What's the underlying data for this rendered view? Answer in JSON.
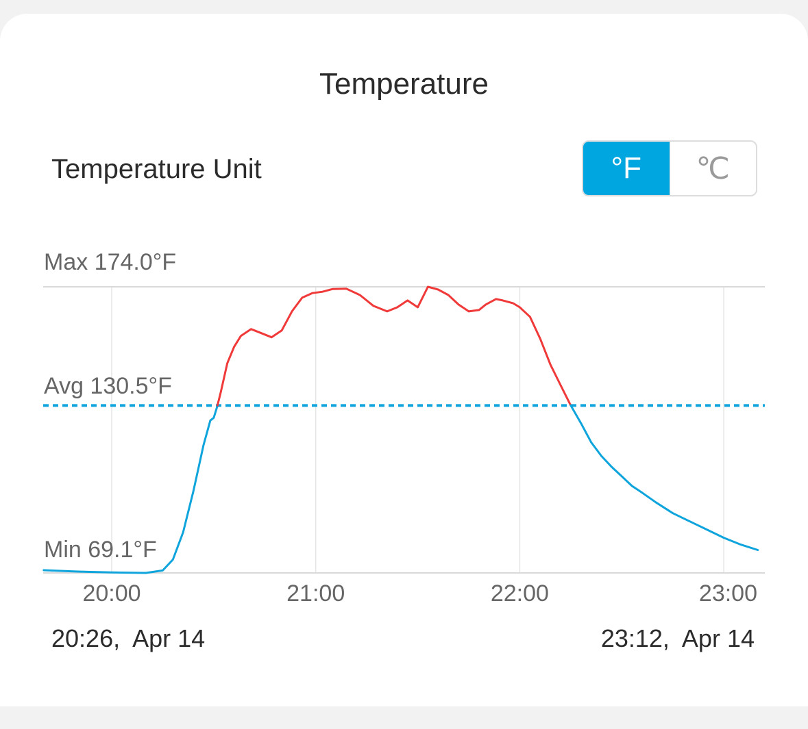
{
  "header": {
    "title": "Temperature"
  },
  "unit_setting": {
    "label": "Temperature Unit",
    "options": [
      "°F",
      "℃"
    ],
    "selected": "°F"
  },
  "time_range": {
    "start": "20:26,  Apr 14",
    "end": "23:12,  Apr 14"
  },
  "colors": {
    "accent": "#00a6e0",
    "above_avg": "#f03a3a",
    "below_avg": "#0fa5dc",
    "grid": "#e5e5e5"
  },
  "chart_data": {
    "type": "line",
    "title": "",
    "xlabel": "",
    "ylabel": "",
    "x_ticks": [
      "20:00",
      "21:00",
      "22:00",
      "23:00"
    ],
    "xlim": [
      "19:40",
      "23:12"
    ],
    "ylim": [
      69.1,
      174.0
    ],
    "max_label": "Max 174.0°F",
    "avg_label": "Avg 130.5°F",
    "min_label": "Min 69.1°F",
    "max": 174.0,
    "avg": 130.5,
    "min": 69.1,
    "color_rule": "red above average, blue below average; dotted blue average line",
    "series": [
      {
        "x": [
          "19:40",
          "19:50",
          "20:00",
          "20:10",
          "20:15",
          "20:18",
          "20:21",
          "20:24",
          "20:27",
          "20:29",
          "20:30",
          "20:31",
          "20:32",
          "20:34",
          "20:36",
          "20:38",
          "20:41",
          "20:44",
          "20:47",
          "20:50",
          "20:53",
          "20:56",
          "20:59",
          "21:02",
          "21:05",
          "21:09",
          "21:13",
          "21:17",
          "21:21",
          "21:24",
          "21:27",
          "21:30",
          "21:33",
          "21:36",
          "21:39",
          "21:42",
          "21:45",
          "21:48",
          "21:50",
          "21:53",
          "21:55",
          "21:58",
          "22:00",
          "22:03",
          "22:06",
          "22:09",
          "22:12",
          "22:15",
          "22:18",
          "22:21",
          "22:24",
          "22:27",
          "22:30",
          "22:33",
          "22:36",
          "22:40",
          "22:45",
          "22:50",
          "22:55",
          "23:00",
          "23:05",
          "23:10"
        ],
        "values": [
          70.1,
          69.6,
          69.3,
          69.1,
          70.0,
          74.0,
          84.0,
          99.0,
          116.0,
          125.0,
          126.0,
          130.0,
          135.0,
          146.0,
          152.0,
          156.0,
          158.5,
          157.0,
          155.5,
          158.0,
          165.0,
          170.0,
          171.7,
          172.2,
          173.2,
          173.3,
          171.0,
          167.0,
          165.0,
          166.5,
          169.0,
          166.5,
          174.0,
          173.0,
          171.0,
          167.5,
          165.0,
          165.5,
          167.5,
          169.5,
          169.0,
          168.0,
          166.5,
          163.0,
          155.0,
          145.5,
          138.0,
          130.5,
          124.0,
          117.0,
          112.0,
          108.0,
          104.5,
          101.0,
          98.5,
          95.0,
          91.0,
          88.0,
          85.0,
          82.0,
          79.5,
          77.5
        ]
      }
    ]
  }
}
